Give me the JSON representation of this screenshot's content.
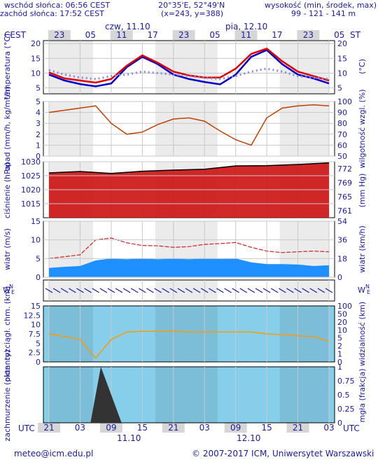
{
  "header": {
    "sunrise": "wschód słońca: 06:56 CEST",
    "sunset": "zachód słońca: 17:52 CEST",
    "coords": "20°35'E, 52°49'N",
    "grid": "(x=243, y=388)",
    "elev_label": "wysokość (min, środek, max)",
    "elev_values": "99 - 121 - 141 m"
  },
  "timeline": {
    "tz": "CEST",
    "utc": "UTC",
    "top_hours": [
      "23",
      "05",
      "11",
      "17",
      "23",
      "05",
      "11",
      "17",
      "23",
      "05"
    ],
    "bottom_hours": [
      "21",
      "03",
      "09",
      "15",
      "21",
      "03",
      "09",
      "15",
      "21",
      "03"
    ],
    "day1_label": "czw, 11.10",
    "day2_label": "pią, 12.10",
    "day1_bottom": "11.10",
    "day2_bottom": "12.10"
  },
  "colors": {
    "temp": "#e00000",
    "dew": "#0000c8",
    "humidity": "#c04000",
    "pressure": "#cc1111",
    "wind_area": "#1e90ff",
    "cloud": "#80c8f0",
    "fog": "#ff9900"
  },
  "chart_data": [
    {
      "type": "line",
      "name": "temperature",
      "ylabel": "temperatura (°C)",
      "ylabel_right": "(°C)",
      "ylim": [
        3,
        21
      ],
      "ticks": [
        5,
        10,
        15,
        20
      ],
      "x_hours_utc": [
        0,
        3,
        6,
        9,
        12,
        15,
        18,
        21,
        24,
        27,
        30,
        33,
        36,
        39,
        42,
        45,
        48,
        51,
        54
      ],
      "series": [
        {
          "values": [
            10.2,
            8.2,
            7.5,
            6.8,
            8.0,
            12.5,
            16.0,
            13.5,
            10.5,
            9.2,
            8.5,
            8.5,
            11.5,
            16.5,
            18.3,
            14.0,
            10.5,
            9.0,
            7.5
          ]
        },
        {
          "values": [
            9.5,
            7.5,
            6.3,
            5.5,
            6.5,
            12.0,
            15.5,
            13.0,
            9.5,
            8.0,
            7.0,
            6.2,
            9.5,
            15.5,
            17.8,
            13.0,
            9.5,
            8.2,
            6.5
          ]
        },
        {
          "values": [
            11.0,
            9.5,
            8.5,
            8.0,
            9.0,
            9.5,
            10.5,
            10.0,
            9.5,
            9.0,
            8.5,
            8.0,
            9.0,
            10.5,
            11.5,
            10.5,
            9.0,
            8.5,
            8.0
          ]
        }
      ]
    },
    {
      "type": "line",
      "name": "precipitation-humidity",
      "ylabel": "opad (mm/h, kg/m²/h)",
      "ylabel_right": "wilgotność wzgl. (%)",
      "ylim": [
        0,
        5
      ],
      "ticks_left": [
        0,
        1,
        2,
        3,
        4,
        5
      ],
      "ticks_right": [
        50,
        60,
        70,
        80,
        90,
        100
      ],
      "x_hours_utc": [
        0,
        3,
        6,
        9,
        12,
        15,
        18,
        21,
        24,
        27,
        30,
        33,
        36,
        39,
        42,
        45,
        48,
        51,
        54
      ],
      "series": [
        {
          "values": [
            90,
            92,
            94,
            96,
            80,
            70,
            72,
            79,
            84,
            85,
            82,
            73,
            65,
            60,
            85,
            94,
            96,
            97,
            96
          ]
        }
      ]
    },
    {
      "type": "area",
      "name": "pressure",
      "ylabel": "ciśnienie (hPa)",
      "ylabel_right": "(mm Hg)",
      "ylim": [
        1010,
        1030
      ],
      "ticks_left": [
        1015,
        1020,
        1025,
        1030
      ],
      "ticks_right": [
        761,
        765,
        769,
        772
      ],
      "x_hours_utc": [
        0,
        6,
        12,
        18,
        24,
        30,
        36,
        42,
        48,
        54
      ],
      "series": [
        {
          "values": [
            1026.0,
            1026.5,
            1025.8,
            1026.6,
            1027.0,
            1027.3,
            1028.5,
            1028.6,
            1029.0,
            1029.6
          ]
        }
      ]
    },
    {
      "type": "area",
      "name": "wind",
      "ylabel": "wiatr (m/s)",
      "ylabel_right": "wiatr (km/h)",
      "ylim": [
        0,
        15
      ],
      "ticks_left": [
        0,
        5,
        10,
        15
      ],
      "ticks_right": [
        0,
        18,
        36,
        54
      ],
      "x_hours_utc": [
        0,
        3,
        6,
        9,
        12,
        15,
        18,
        21,
        24,
        27,
        30,
        33,
        36,
        39,
        42,
        45,
        48,
        51,
        54
      ],
      "series": [
        {
          "name": "mean",
          "values": [
            2.5,
            2.8,
            3.0,
            4.5,
            5.0,
            4.8,
            5.0,
            4.8,
            5.0,
            4.8,
            5.0,
            4.9,
            5.0,
            4.0,
            3.5,
            3.5,
            3.4,
            3.0,
            3.2
          ]
        },
        {
          "name": "gust",
          "values": [
            5.0,
            5.5,
            6.0,
            10.0,
            10.5,
            9.2,
            8.5,
            8.4,
            8.0,
            8.2,
            8.8,
            9.0,
            9.3,
            8.0,
            7.0,
            6.6,
            6.8,
            7.0,
            6.8
          ]
        }
      ]
    },
    {
      "type": "scatter",
      "name": "cloud-visibility",
      "ylabel": "pion. rozciągł. chm. (km)",
      "ylabel_right": "widzialność (km)",
      "ylim": [
        0,
        15
      ],
      "ticks_left": [
        0,
        2.5,
        5,
        7.5,
        10,
        12.5,
        15
      ],
      "ticks_right": [
        0,
        1,
        2,
        5,
        10,
        20,
        50,
        100
      ],
      "x_hours_utc": [
        0,
        3,
        6,
        9,
        12,
        15,
        18,
        21,
        24,
        27,
        30,
        33,
        36,
        39,
        42,
        45,
        48,
        51,
        54
      ],
      "series": [
        {
          "name": "visibility",
          "values": [
            7.5,
            6.8,
            6.0,
            1.0,
            6.0,
            8.0,
            8.2,
            8.2,
            8.2,
            8.0,
            8.0,
            8.0,
            8.0,
            8.0,
            7.5,
            7.3,
            7.0,
            6.8,
            5.5
          ]
        }
      ]
    },
    {
      "type": "bar",
      "name": "cloudiness-fog",
      "ylabel": "zachmurzenie (oktanty)",
      "ylabel_right": "mgła (frakcja)",
      "ylim": [
        0,
        8
      ],
      "ticks_right": [
        0,
        0.25,
        0.5,
        0.75,
        1
      ]
    }
  ],
  "footer": {
    "email": "meteo@icm.edu.pl",
    "copyright": "© 2007-2017 ICM, Uniwersytet Warszawski"
  }
}
